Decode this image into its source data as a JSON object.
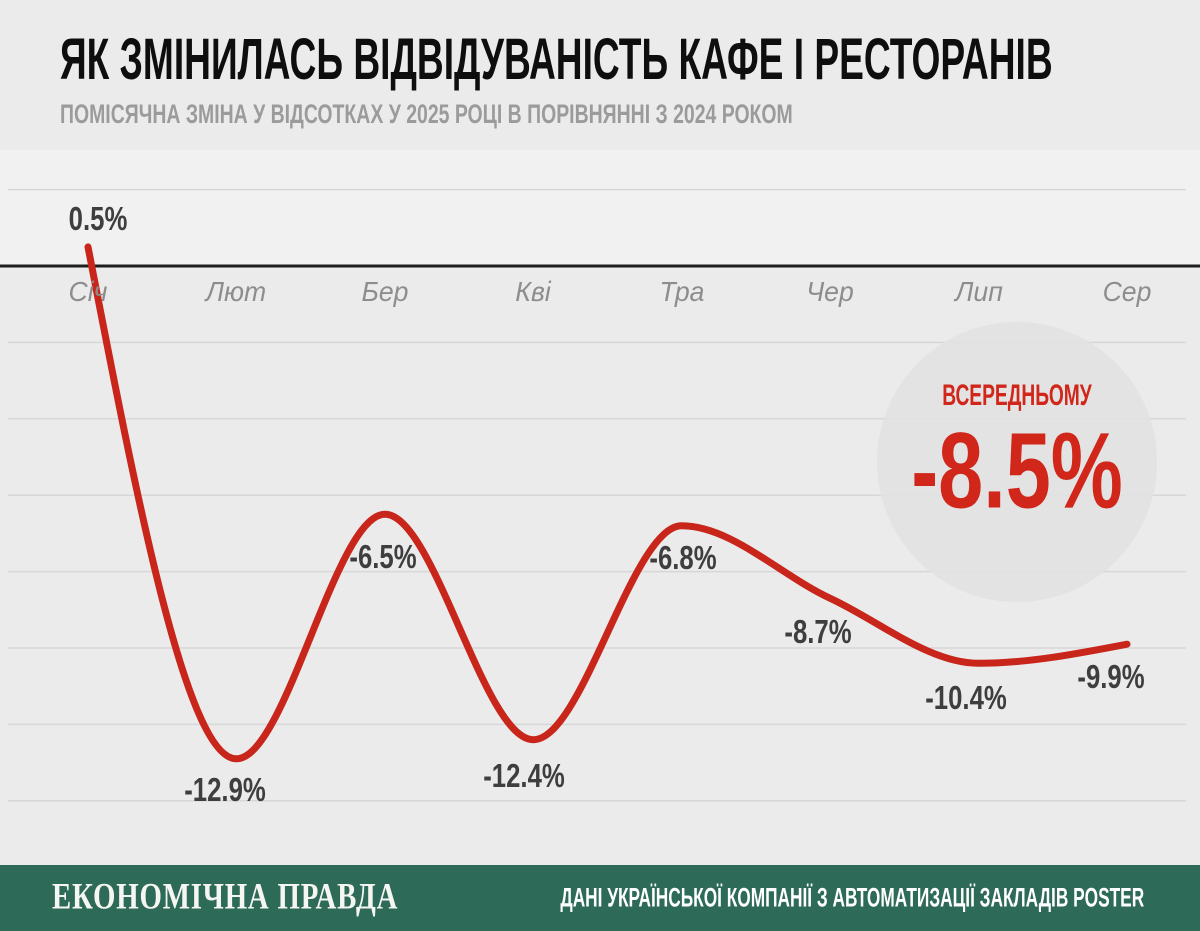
{
  "header": {
    "title": "ЯК ЗМІНИЛАСЬ ВІДВІДУВАНІСТЬ КАФЕ І РЕСТОРАНІВ",
    "subtitle": "ПОМІСЯЧНА ЗМІНА У ВІДСОТКАХ У 2025 РОЦІ В ПОРІВНЯННІ З 2024 РОКОМ"
  },
  "chart_data": {
    "type": "line",
    "categories": [
      "Січ",
      "Лют",
      "Бер",
      "Кві",
      "Тра",
      "Чер",
      "Лип",
      "Сер"
    ],
    "values": [
      0.5,
      -12.9,
      -6.5,
      -12.4,
      -6.8,
      -8.7,
      -10.4,
      -9.9
    ],
    "point_labels": [
      "0.5%",
      "-12.9%",
      "-6.5%",
      "-12.4%",
      "-6.8%",
      "-8.7%",
      "-10.4%",
      "-9.9%"
    ],
    "title": "ЯК ЗМІНИЛАСЬ ВІДВІДУВАНІСТЬ КАФЕ І РЕСТОРАНІВ",
    "xlabel": "",
    "ylabel": "",
    "ylim": [
      -14,
      2
    ],
    "grid_step": 2,
    "grid": true,
    "legend": "none",
    "average": {
      "label": "ВСЕРЕДНЬОМУ",
      "value": -8.5,
      "display": "-8.5%"
    }
  },
  "badge": {
    "label": "ВСЕРЕДНЬОМУ",
    "value": "-8.5%"
  },
  "footer": {
    "brand": "ЕКОНОМІЧНА ПРАВДА",
    "source": "ДАНІ УКРАЇНСЬКОЇ КОМПАНІЇ З АВТОМАТИЗАЦІЇ ЗАКЛАДІВ POSTER"
  },
  "colors": {
    "background": "#ebebeb",
    "positive_band": "#f2f2f2",
    "grid": "#d7d7d7",
    "zero_line": "#1e1e1e",
    "line_red": "#c8251b",
    "badge_red": "#d1261a",
    "circle_fill": "#e2e2e2",
    "footer_green": "#2d6a58",
    "title_text": "#0e0e0e",
    "subtitle_text": "#9b9b9b",
    "month_text": "#8d8d8d",
    "value_text": "#3e3e3e"
  }
}
